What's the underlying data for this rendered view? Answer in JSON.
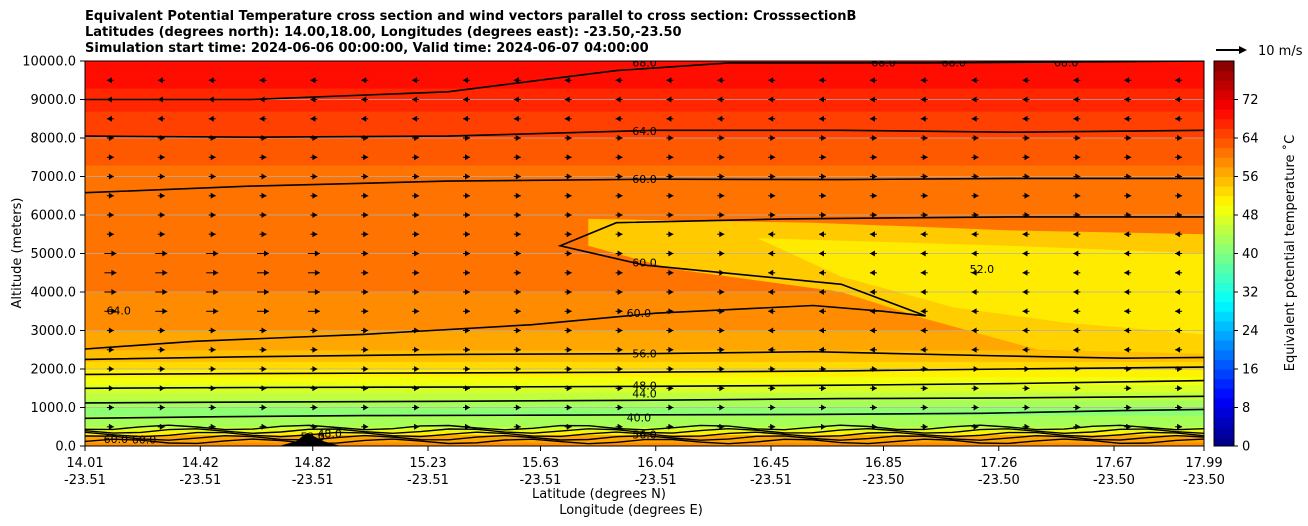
{
  "chart_data": {
    "type": "contour-cross-section",
    "title_lines": [
      "Equivalent Potential Temperature cross section and wind vectors parallel to cross section: CrosssectionB",
      "Latitudes (degrees north): 14.00,18.00, Longitudes (degrees east): -23.50,-23.50",
      "Simulation start time: 2024-06-06 00:00:00, Valid time: 2024-06-07 04:00:00"
    ],
    "ylabel": "Altitude (meters)",
    "xlabel_lat": "Latitude (degrees N)",
    "xlabel_lon": "Longitude (degrees E)",
    "ylim": [
      0,
      10000
    ],
    "xlim": [
      14.01,
      17.99
    ],
    "y_ticks": [
      {
        "v": 0,
        "label": "0.0"
      },
      {
        "v": 1000,
        "label": "1000.0"
      },
      {
        "v": 2000,
        "label": "2000.0"
      },
      {
        "v": 3000,
        "label": "3000.0"
      },
      {
        "v": 4000,
        "label": "4000.0"
      },
      {
        "v": 5000,
        "label": "5000.0"
      },
      {
        "v": 6000,
        "label": "6000.0"
      },
      {
        "v": 7000,
        "label": "7000.0"
      },
      {
        "v": 8000,
        "label": "8000.0"
      },
      {
        "v": 9000,
        "label": "9000.0"
      },
      {
        "v": 10000,
        "label": "10000.0"
      }
    ],
    "x_ticks": [
      {
        "v": 14.01,
        "lat": "14.01",
        "lon": "-23.51"
      },
      {
        "v": 14.42,
        "lat": "14.42",
        "lon": "-23.51"
      },
      {
        "v": 14.82,
        "lat": "14.82",
        "lon": "-23.51"
      },
      {
        "v": 15.23,
        "lat": "15.23",
        "lon": "-23.51"
      },
      {
        "v": 15.63,
        "lat": "15.63",
        "lon": "-23.51"
      },
      {
        "v": 16.04,
        "lat": "16.04",
        "lon": "-23.51"
      },
      {
        "v": 16.45,
        "lat": "16.45",
        "lon": "-23.51"
      },
      {
        "v": 16.85,
        "lat": "16.85",
        "lon": "-23.50"
      },
      {
        "v": 17.26,
        "lat": "17.26",
        "lon": "-23.50"
      },
      {
        "v": 17.67,
        "lat": "17.67",
        "lon": "-23.50"
      },
      {
        "v": 17.99,
        "lat": "17.99",
        "lon": "-23.50"
      }
    ],
    "colorbar": {
      "label": "Equivalent potential temperature $^\\circ$C",
      "label_display": "Equivalent potential temperature ˚C",
      "min": 0,
      "max": 80,
      "ticks": [
        "0",
        "8",
        "16",
        "24",
        "32",
        "40",
        "48",
        "56",
        "64",
        "72"
      ],
      "colormap": "jet"
    },
    "wind_key": {
      "label": "10 m/s"
    },
    "theta_e_profile_by_altitude": [
      {
        "z": 0,
        "v": 60
      },
      {
        "z": 250,
        "v": 56
      },
      {
        "z": 500,
        "v": 44
      },
      {
        "z": 900,
        "v": 41
      },
      {
        "z": 1300,
        "v": 45
      },
      {
        "z": 1800,
        "v": 50
      },
      {
        "z": 2300,
        "v": 55
      },
      {
        "z": 3000,
        "v": 58
      },
      {
        "z": 4000,
        "v": 60
      },
      {
        "z": 5000,
        "v": 60
      },
      {
        "z": 6000,
        "v": 60
      },
      {
        "z": 7000,
        "v": 61
      },
      {
        "z": 8000,
        "v": 64
      },
      {
        "z": 9000,
        "v": 67
      },
      {
        "z": 10000,
        "v": 70
      }
    ],
    "contours": [
      {
        "level": "40.0",
        "pts": [
          [
            14.01,
            720
          ],
          [
            14.5,
            760
          ],
          [
            15.0,
            790
          ],
          [
            15.6,
            800
          ],
          [
            16.04,
            810
          ],
          [
            16.6,
            820
          ],
          [
            17.2,
            850
          ],
          [
            17.7,
            920
          ],
          [
            17.99,
            950
          ]
        ]
      },
      {
        "level": "44.0",
        "pts": [
          [
            14.01,
            1120
          ],
          [
            14.6,
            1140
          ],
          [
            15.3,
            1160
          ],
          [
            16.04,
            1190
          ],
          [
            16.7,
            1230
          ],
          [
            17.3,
            1250
          ],
          [
            17.99,
            1290
          ]
        ]
      },
      {
        "level": "48.0",
        "pts": [
          [
            14.01,
            1500
          ],
          [
            14.6,
            1520
          ],
          [
            15.3,
            1530
          ],
          [
            16.04,
            1550
          ],
          [
            16.7,
            1580
          ],
          [
            17.3,
            1620
          ],
          [
            17.99,
            1700
          ]
        ]
      },
      {
        "level": "52.0",
        "pts": [
          [
            14.01,
            1860
          ],
          [
            14.6,
            1880
          ],
          [
            15.3,
            1900
          ],
          [
            16.04,
            1920
          ],
          [
            16.7,
            1950
          ],
          [
            17.3,
            2000
          ],
          [
            17.99,
            2050
          ]
        ]
      },
      {
        "level": "56.0",
        "pts": [
          [
            14.01,
            2250
          ],
          [
            14.6,
            2320
          ],
          [
            15.3,
            2380
          ],
          [
            16.04,
            2400
          ],
          [
            16.6,
            2450
          ],
          [
            17.2,
            2350
          ],
          [
            17.7,
            2280
          ],
          [
            17.99,
            2300
          ]
        ]
      },
      {
        "level": "60.0",
        "pts": [
          [
            14.01,
            2520
          ],
          [
            14.4,
            2720
          ],
          [
            15.0,
            2900
          ],
          [
            15.6,
            3150
          ],
          [
            16.04,
            3450
          ],
          [
            16.6,
            3650
          ],
          [
            16.85,
            3500
          ],
          [
            17.0,
            3380
          ],
          [
            16.7,
            4200
          ],
          [
            16.0,
            4700
          ],
          [
            15.7,
            5200
          ],
          [
            15.9,
            5800
          ],
          [
            16.5,
            5900
          ],
          [
            17.3,
            5950
          ],
          [
            17.99,
            5950
          ]
        ]
      },
      {
        "level": "60.0",
        "pts": [
          [
            14.01,
            6580
          ],
          [
            14.6,
            6750
          ],
          [
            15.3,
            6880
          ],
          [
            16.04,
            6930
          ],
          [
            16.7,
            6920
          ],
          [
            17.3,
            6950
          ],
          [
            17.99,
            6950
          ]
        ]
      },
      {
        "level": "64.0",
        "pts": [
          [
            14.01,
            8050
          ],
          [
            14.6,
            8020
          ],
          [
            15.3,
            8050
          ],
          [
            16.04,
            8200
          ],
          [
            16.7,
            8200
          ],
          [
            17.3,
            8150
          ],
          [
            17.99,
            8200
          ]
        ]
      },
      {
        "level": "68.0",
        "pts": [
          [
            14.01,
            9000
          ],
          [
            14.6,
            9000
          ],
          [
            15.3,
            9200
          ],
          [
            15.9,
            9750
          ],
          [
            16.3,
            9950
          ],
          [
            17.0,
            9950
          ],
          [
            17.99,
            10000
          ]
        ]
      }
    ],
    "contour_labels": [
      {
        "x": 16.0,
        "z": 9960,
        "text": "68.0"
      },
      {
        "x": 16.0,
        "z": 8180,
        "text": "64.0"
      },
      {
        "x": 16.0,
        "z": 6930,
        "text": "60.0"
      },
      {
        "x": 16.0,
        "z": 4760,
        "text": "60.0"
      },
      {
        "x": 15.98,
        "z": 3460,
        "text": "60.0"
      },
      {
        "x": 17.2,
        "z": 4600,
        "text": "52.0"
      },
      {
        "x": 14.13,
        "z": 3520,
        "text": "64.0"
      },
      {
        "x": 16.0,
        "z": 2400,
        "text": "56.0"
      },
      {
        "x": 16.0,
        "z": 1570,
        "text": "48.0"
      },
      {
        "x": 16.0,
        "z": 1360,
        "text": "44.0"
      },
      {
        "x": 15.98,
        "z": 740,
        "text": "40.0"
      },
      {
        "x": 16.0,
        "z": 300,
        "text": "56.0"
      },
      {
        "x": 14.82,
        "z": 250,
        "text": "52.0"
      },
      {
        "x": 14.88,
        "z": 320,
        "text": "48.0"
      },
      {
        "x": 14.22,
        "z": 170,
        "text": "60.0"
      },
      {
        "x": 14.12,
        "z": 180,
        "text": "60.0"
      },
      {
        "x": 16.85,
        "z": 9960,
        "text": "68.0"
      },
      {
        "x": 17.1,
        "z": 9960,
        "text": "68.0"
      },
      {
        "x": 17.5,
        "z": 9960,
        "text": "68.0"
      }
    ],
    "terrain": [
      [
        14.7,
        0
      ],
      [
        14.76,
        120
      ],
      [
        14.8,
        340
      ],
      [
        14.86,
        120
      ],
      [
        14.92,
        0
      ]
    ],
    "wind_vectors_note": "arrows parallel to section; eastward-positive rendered as rightward, small arrows; rows every 500 m"
  }
}
